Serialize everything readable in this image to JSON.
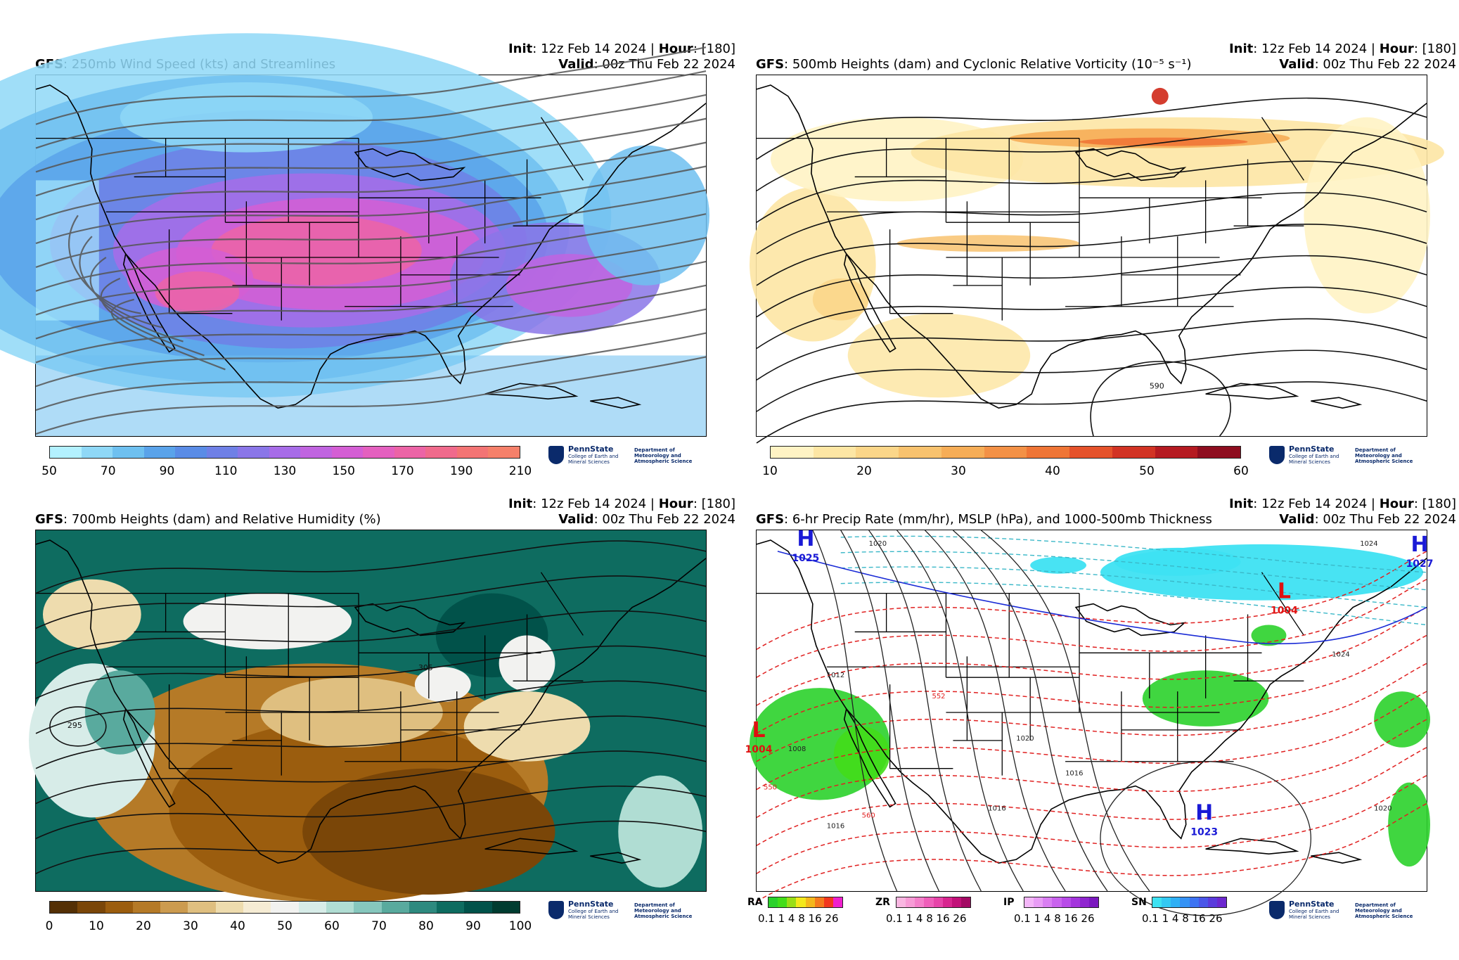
{
  "colors": {
    "wind": [
      "#b3f1ff",
      "#8fd8f7",
      "#6ec0f0",
      "#5aa3ea",
      "#5a8ce6",
      "#6f80e6",
      "#8a76e8",
      "#a76ce8",
      "#c064e0",
      "#d45ed4",
      "#e460bf",
      "#ec64a6",
      "#f06a8c",
      "#f37474",
      "#f5806a"
    ],
    "vort": [
      "#fff3c4",
      "#fde6a4",
      "#fbd689",
      "#f8c26e",
      "#f6ad57",
      "#f39146",
      "#ef7536",
      "#e5522b",
      "#d23324",
      "#b51a21",
      "#8e0d1f"
    ],
    "rh": [
      "#543005",
      "#7a4608",
      "#9b5d0e",
      "#b57a27",
      "#cc9b4f",
      "#dfbf80",
      "#eedcae",
      "#f6ecd4",
      "#f2f2f0",
      "#d7ece8",
      "#b0ddd3",
      "#86c7bd",
      "#59aa9e",
      "#2e8a7f",
      "#0e6c60",
      "#01524a",
      "#003c30"
    ],
    "ra": [
      "#2bd12b",
      "#43dd1a",
      "#9ade17",
      "#f3e81c",
      "#f4b71c",
      "#f57a1d",
      "#f2371e",
      "#ef1fcd"
    ],
    "zr": [
      "#f9b6e1",
      "#f79bd6",
      "#f47fca",
      "#ef5fba",
      "#e744a9",
      "#d8258f",
      "#c21179",
      "#a30a64"
    ],
    "ip": [
      "#f3b6f8",
      "#e89cf5",
      "#d97ef2",
      "#c963ee",
      "#b84be8",
      "#a435dd",
      "#8f25cf",
      "#7b18bf"
    ],
    "sn": [
      "#3ee2f2",
      "#33c9f3",
      "#2fb0f5",
      "#3592f5",
      "#3d73f2",
      "#4a56e8",
      "#5a3bdc",
      "#6c28cf"
    ]
  },
  "panels": [
    {
      "title_model": "GFS",
      "title_text": ": 250mb Wind Speed (kts) and Streamlines",
      "init_label": "Init",
      "init_value": ": 12z Feb 14 2024 | ",
      "hour_label": "Hour",
      "hour_value": ": [180]",
      "valid_label": "Valid",
      "valid_value": ": 00z Thu Feb 22 2024",
      "colorbar_ticks": [
        "50",
        "70",
        "90",
        "110",
        "130",
        "150",
        "170",
        "190",
        "210"
      ],
      "logo_name": "PennState",
      "logo_college": "College of Earth and Mineral Sciences",
      "logo_dept": "Department of Meteorology and Atmospheric Science"
    },
    {
      "title_model": "GFS",
      "title_text": ": 500mb Heights (dam) and Cyclonic Relative Vorticity (10⁻⁵ s⁻¹)",
      "init_label": "Init",
      "init_value": ": 12z Feb 14 2024 | ",
      "hour_label": "Hour",
      "hour_value": ": [180]",
      "valid_label": "Valid",
      "valid_value": ": 00z Thu Feb 22 2024",
      "colorbar_ticks": [
        "10",
        "20",
        "30",
        "40",
        "50",
        "60"
      ],
      "contour_labels": [
        "590"
      ],
      "logo_name": "PennState",
      "logo_college": "College of Earth and Mineral Sciences",
      "logo_dept": "Department of Meteorology and Atmospheric Science"
    },
    {
      "title_model": "GFS",
      "title_text": ": 700mb Heights (dam) and Relative Humidity (%)",
      "init_label": "Init",
      "init_value": ": 12z Feb 14 2024 | ",
      "hour_label": "Hour",
      "hour_value": ": [180]",
      "valid_label": "Valid",
      "valid_value": ": 00z Thu Feb 22 2024",
      "colorbar_ticks": [
        "0",
        "10",
        "20",
        "30",
        "40",
        "50",
        "60",
        "70",
        "80",
        "90",
        "100"
      ],
      "contour_labels": [
        "295",
        "305"
      ],
      "logo_name": "PennState",
      "logo_college": "College of Earth and Mineral Sciences",
      "logo_dept": "Department of Meteorology and Atmospheric Science"
    },
    {
      "title_model": "GFS",
      "title_text": ": 6-hr Precip Rate (mm/hr), MSLP (hPa), and 1000-500mb Thickness",
      "init_label": "Init",
      "init_value": ": 12z Feb 14 2024 | ",
      "hour_label": "Hour",
      "hour_value": ": [180]",
      "valid_label": "Valid",
      "valid_value": ": 00z Thu Feb 22 2024",
      "precip_legend": [
        {
          "label": "RA",
          "ticks": "0.1 1  4  8 16 26"
        },
        {
          "label": "ZR",
          "ticks": "0.1 1  4  8 16 26"
        },
        {
          "label": "IP",
          "ticks": "0.1 1  4  8 16 26"
        },
        {
          "label": "SN",
          "ticks": "0.1 1  4  8 16 26"
        }
      ],
      "pressure_centers": [
        {
          "type": "H",
          "value": "1025"
        },
        {
          "type": "L",
          "value": "1004"
        },
        {
          "type": "L",
          "value": "1004"
        },
        {
          "type": "H",
          "value": "1023"
        },
        {
          "type": "H",
          "value": "1027"
        }
      ],
      "contour_labels": [
        "1020",
        "1024",
        "1012",
        "1016",
        "1008",
        "1016",
        "1020",
        "1024",
        "1020",
        "552",
        "550",
        "560",
        "1016"
      ],
      "logo_name": "PennState",
      "logo_college": "College of Earth and Mineral Sciences",
      "logo_dept": "Department of Meteorology and Atmospheric Science"
    }
  ]
}
